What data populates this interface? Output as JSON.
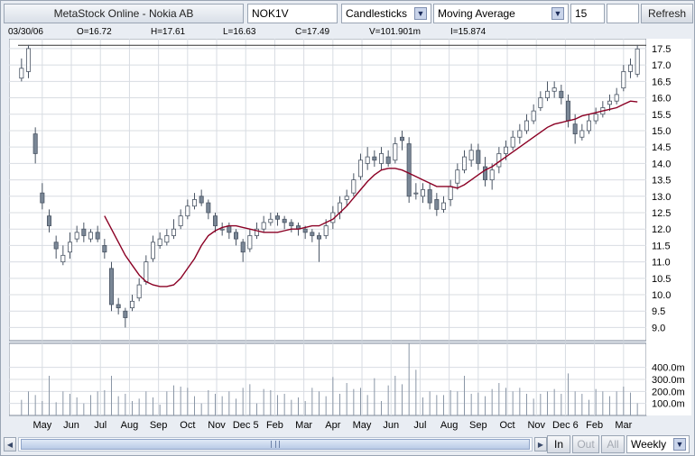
{
  "toolbar": {
    "app_title": "MetaStock Online - Nokia AB",
    "symbol": "NOK1V",
    "chart_type": "Candlesticks",
    "indicator": "Moving Average",
    "period": "15",
    "extra": "",
    "refresh_label": "Refresh"
  },
  "info": {
    "date": "03/30/06",
    "open": "O=16.72",
    "high": "H=17.61",
    "low": "L=16.63",
    "close": "C=17.49",
    "volume": "V=101.901m",
    "indicator": "I=15.874"
  },
  "controls": {
    "zoom_in": "In",
    "zoom_out": "Out",
    "zoom_all": "All",
    "interval": "Weekly"
  },
  "chart_data": {
    "type": "candlestick",
    "title": "",
    "y_ticks": [
      "17.5",
      "17.0",
      "16.5",
      "16.0",
      "15.5",
      "15.0",
      "14.5",
      "14.0",
      "13.5",
      "13.0",
      "12.5",
      "12.0",
      "11.5",
      "11.0",
      "10.5",
      "10.0",
      "9.5",
      "9.0"
    ],
    "ylim": [
      8.6,
      17.8
    ],
    "volume_ticks": [
      "400.0m",
      "300.0m",
      "200.0m",
      "100.0m"
    ],
    "volume_ylim": [
      0,
      600
    ],
    "x_labels": [
      "May",
      "Jun",
      "Jul",
      "Aug",
      "Sep",
      "Oct",
      "Nov",
      "Dec 5",
      "Feb",
      "Mar",
      "Apr",
      "May",
      "Jun",
      "Jul",
      "Aug",
      "Sep",
      "Oct",
      "Nov",
      "Dec 6",
      "Feb",
      "Mar"
    ],
    "reference_line": 17.6,
    "colors": {
      "up": "#ffffff",
      "down": "#7a8796",
      "wick": "#4a5564",
      "ma": "#8b0024",
      "grid": "#d8dce2",
      "volume": "#8a96a6"
    },
    "close": [
      16.9,
      17.5,
      14.3,
      12.8,
      12.1,
      11.4,
      11.2,
      11.6,
      11.9,
      11.8,
      11.9,
      11.7,
      11.3,
      9.7,
      9.6,
      9.3,
      9.8,
      10.3,
      11.0,
      11.6,
      11.7,
      11.8,
      12.0,
      12.4,
      12.7,
      12.9,
      12.8,
      12.5,
      12.1,
      12.0,
      11.9,
      11.7,
      11.3,
      11.8,
      12.0,
      12.2,
      12.3,
      12.3,
      12.2,
      12.1,
      12.0,
      11.9,
      11.8,
      11.7,
      12.1,
      12.5,
      12.8,
      13.0,
      13.5,
      14.1,
      14.2,
      14.1,
      14.3,
      14.0,
      14.6,
      14.7,
      13.0,
      13.1,
      13.2,
      12.8,
      12.6,
      12.8,
      13.3,
      13.8,
      14.2,
      14.4,
      14.0,
      13.5,
      13.8,
      14.3,
      14.5,
      14.8,
      15.0,
      15.3,
      15.6,
      16.0,
      16.2,
      16.3,
      16.0,
      15.3,
      14.9,
      15.0,
      15.3,
      15.5,
      15.7,
      15.9,
      16.1,
      16.8,
      17.0,
      17.49
    ],
    "open": [
      16.6,
      16.8,
      14.9,
      13.1,
      12.4,
      11.6,
      11.0,
      11.3,
      11.7,
      12.0,
      11.7,
      11.9,
      11.5,
      10.8,
      9.7,
      9.5,
      9.6,
      9.9,
      10.4,
      11.1,
      11.5,
      11.6,
      11.8,
      12.1,
      12.4,
      12.7,
      13.0,
      12.8,
      12.4,
      12.0,
      12.1,
      11.9,
      11.6,
      11.4,
      11.8,
      12.0,
      12.2,
      12.4,
      12.3,
      12.2,
      12.1,
      12.0,
      11.9,
      11.8,
      11.8,
      12.2,
      12.5,
      12.9,
      13.1,
      13.6,
      14.0,
      14.2,
      14.0,
      14.2,
      14.1,
      14.8,
      14.6,
      13.1,
      13.0,
      13.2,
      12.9,
      12.6,
      12.9,
      13.4,
      13.8,
      14.1,
      14.4,
      13.9,
      13.5,
      13.9,
      14.3,
      14.5,
      14.8,
      15.0,
      15.3,
      15.7,
      16.0,
      16.2,
      16.2,
      15.9,
      15.2,
      14.8,
      15.0,
      15.3,
      15.5,
      15.8,
      15.9,
      16.3,
      16.8,
      16.72
    ],
    "high": [
      17.2,
      17.61,
      15.1,
      13.4,
      12.6,
      11.8,
      11.5,
      11.9,
      12.1,
      12.2,
      12.0,
      12.1,
      11.7,
      11.0,
      9.9,
      9.6,
      10.0,
      10.5,
      11.2,
      11.8,
      11.9,
      12.0,
      12.3,
      12.6,
      12.9,
      13.1,
      13.2,
      12.9,
      12.5,
      12.2,
      12.2,
      12.0,
      11.7,
      12.0,
      12.2,
      12.4,
      12.5,
      12.5,
      12.4,
      12.3,
      12.2,
      12.1,
      12.0,
      11.9,
      12.3,
      12.7,
      13.0,
      13.2,
      13.7,
      14.3,
      14.5,
      14.4,
      14.5,
      14.4,
      14.8,
      15.0,
      14.8,
      13.4,
      13.4,
      13.4,
      13.1,
      13.0,
      13.5,
      14.0,
      14.4,
      14.6,
      14.6,
      14.2,
      14.0,
      14.5,
      14.7,
      15.0,
      15.2,
      15.5,
      15.8,
      16.2,
      16.5,
      16.5,
      16.4,
      16.1,
      15.5,
      15.2,
      15.5,
      15.7,
      15.9,
      16.1,
      16.3,
      17.0,
      17.2,
      17.61
    ],
    "low": [
      16.5,
      16.6,
      14.0,
      12.6,
      11.9,
      11.1,
      10.9,
      11.1,
      11.6,
      11.6,
      11.6,
      11.6,
      11.1,
      9.5,
      9.4,
      9.0,
      9.5,
      9.8,
      10.3,
      11.0,
      11.4,
      11.5,
      11.7,
      12.0,
      12.3,
      12.6,
      12.7,
      12.3,
      11.9,
      11.8,
      11.7,
      11.5,
      11.0,
      11.3,
      11.7,
      11.9,
      12.1,
      12.1,
      12.0,
      11.9,
      11.8,
      11.7,
      11.6,
      11.0,
      11.7,
      12.0,
      12.3,
      12.7,
      13.0,
      13.5,
      13.8,
      13.9,
      13.8,
      13.9,
      14.0,
      14.4,
      12.8,
      12.9,
      12.8,
      12.6,
      12.4,
      12.5,
      12.7,
      13.2,
      13.7,
      13.9,
      13.8,
      13.3,
      13.2,
      13.7,
      14.1,
      14.4,
      14.6,
      14.9,
      15.2,
      15.6,
      15.9,
      16.0,
      15.8,
      15.1,
      14.6,
      14.7,
      14.9,
      15.2,
      15.4,
      15.6,
      15.8,
      16.2,
      16.6,
      16.63
    ],
    "moving_average": [
      null,
      null,
      null,
      null,
      null,
      null,
      null,
      null,
      null,
      null,
      null,
      null,
      12.4,
      12.0,
      11.6,
      11.2,
      10.9,
      10.6,
      10.4,
      10.3,
      10.25,
      10.25,
      10.3,
      10.5,
      10.8,
      11.1,
      11.5,
      11.8,
      11.95,
      12.05,
      12.1,
      12.1,
      12.05,
      12.0,
      11.95,
      11.9,
      11.9,
      11.9,
      11.95,
      12.0,
      12.0,
      12.05,
      12.1,
      12.1,
      12.2,
      12.3,
      12.5,
      12.7,
      12.95,
      13.2,
      13.45,
      13.65,
      13.8,
      13.85,
      13.85,
      13.8,
      13.7,
      13.6,
      13.5,
      13.4,
      13.3,
      13.3,
      13.3,
      13.25,
      13.35,
      13.5,
      13.65,
      13.8,
      13.9,
      14.05,
      14.2,
      14.35,
      14.5,
      14.65,
      14.8,
      14.95,
      15.1,
      15.2,
      15.25,
      15.3,
      15.35,
      15.45,
      15.5,
      15.55,
      15.6,
      15.65,
      15.7,
      15.8,
      15.9,
      15.874
    ],
    "volume": [
      130,
      200,
      170,
      120,
      330,
      110,
      200,
      180,
      150,
      100,
      170,
      200,
      210,
      330,
      160,
      180,
      120,
      140,
      200,
      150,
      90,
      200,
      250,
      240,
      230,
      160,
      100,
      210,
      180,
      160,
      200,
      140,
      230,
      260,
      100,
      220,
      210,
      170,
      180,
      130,
      150,
      120,
      230,
      200,
      160,
      320,
      180,
      270,
      220,
      230,
      170,
      310,
      120,
      250,
      330,
      260,
      600,
      380,
      150,
      200,
      170,
      170,
      210,
      200,
      330,
      180,
      190,
      160,
      220,
      270,
      230,
      200,
      230,
      180,
      140,
      180,
      200,
      220,
      180,
      350,
      200,
      180,
      130,
      220,
      200,
      160,
      200,
      240,
      190,
      101.901
    ]
  }
}
